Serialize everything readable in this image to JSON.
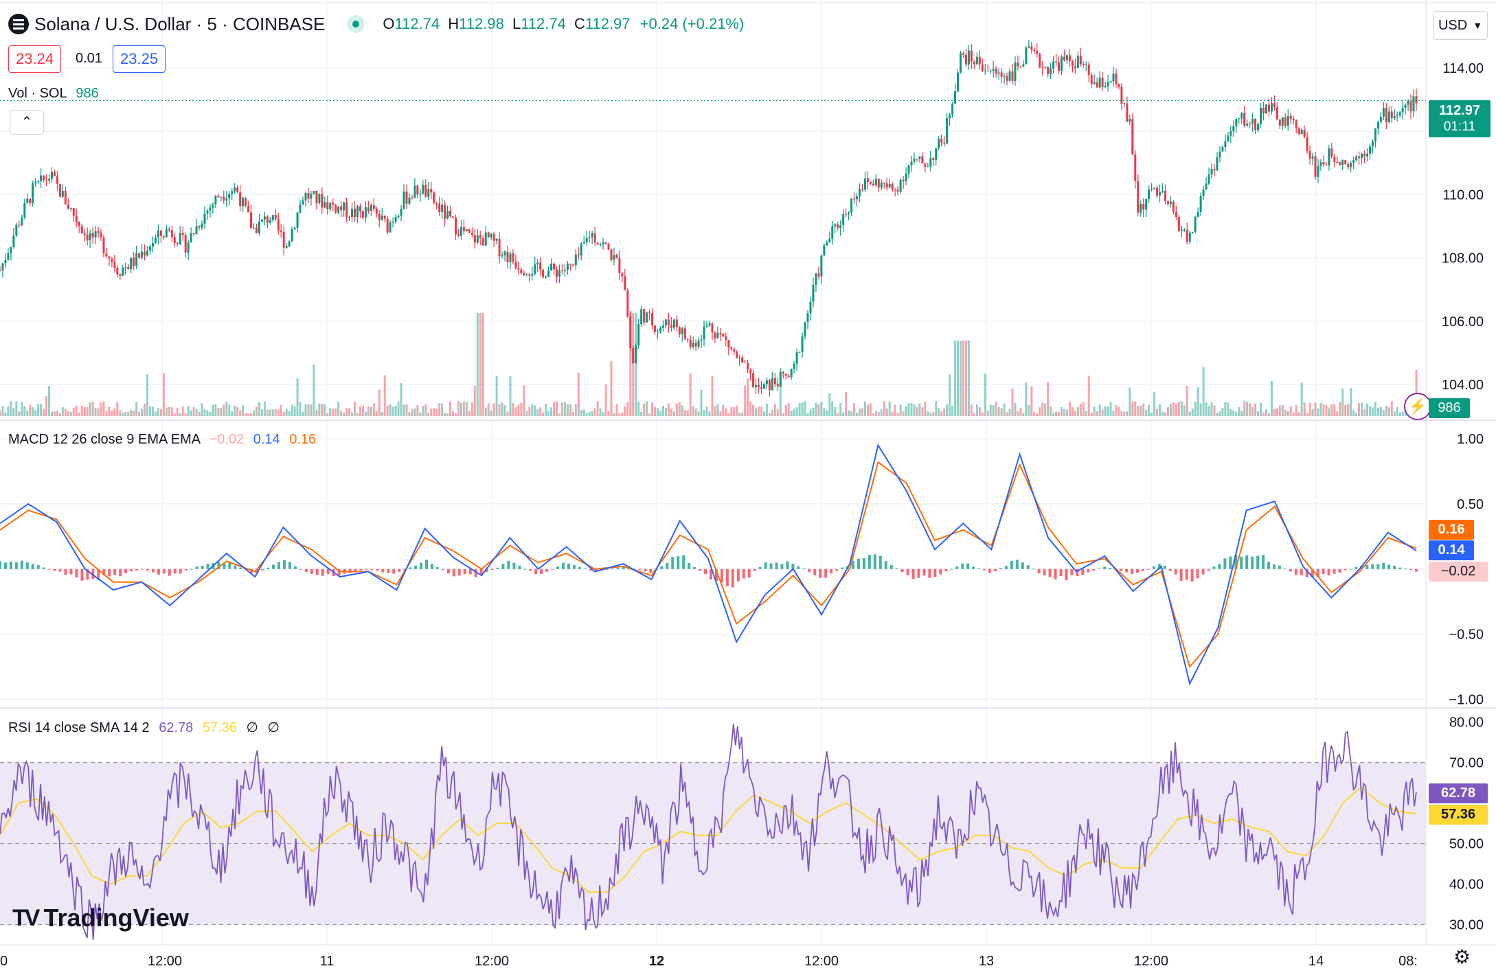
{
  "header": {
    "symbol_title": "Solana / U.S. Dollar · 5 · COINBASE",
    "ohlc": {
      "o_label": "O",
      "o": "112.74",
      "h_label": "H",
      "h": "112.98",
      "l_label": "L",
      "l": "112.74",
      "c_label": "C",
      "c": "112.97",
      "change": "+0.24 (+0.21%)"
    },
    "bid": "23.24",
    "spread": "0.01",
    "ask": "23.25",
    "currency": "USD"
  },
  "volume_legend": {
    "label": "Vol · SOL",
    "value": "986"
  },
  "macd_legend": {
    "label": "MACD 12 26 close 9 EMA EMA",
    "hist": "−0.02",
    "macd": "0.14",
    "signal": "0.16"
  },
  "rsi_legend": {
    "label": "RSI 14 close SMA 14 2",
    "rsi": "62.78",
    "sma": "57.36",
    "extra1": "∅",
    "extra2": "∅"
  },
  "price_scale": {
    "ticks": [
      "114.00",
      "112.00",
      "110.00",
      "108.00",
      "106.00",
      "104.00"
    ],
    "last_price": "112.97",
    "countdown": "01:11",
    "volume_last": "986"
  },
  "macd_scale": {
    "ticks": [
      "1.00",
      "0.50",
      "−0.50",
      "−1.00"
    ],
    "signal_tag": "0.16",
    "macd_tag": "0.14",
    "hist_tag": "−0.02"
  },
  "rsi_scale": {
    "ticks": [
      "80.00",
      "70.00",
      "50.00",
      "40.00",
      "30.00"
    ],
    "rsi_tag": "62.78",
    "sma_tag": "57.36"
  },
  "time_axis": {
    "labels": [
      "0",
      "12:00",
      "11",
      "12:00",
      "12",
      "12:00",
      "13",
      "12:00",
      "14",
      "08:"
    ]
  },
  "brand": {
    "name": "TradingView",
    "logo": "TV"
  },
  "colors": {
    "up": "#089981",
    "down": "#f23645",
    "macd": "#2962ff",
    "signal": "#ff6d00",
    "rsi": "#7e57c2",
    "rsi_sma": "#fdd835",
    "rsi_band": "#ede7f6",
    "accent_last": "#089981"
  },
  "chart_data": [
    {
      "type": "candlestick",
      "title": "Solana / U.S. Dollar · 5 · COINBASE",
      "ylim": [
        103,
        115.5
      ],
      "x_labels": [
        "0",
        "12:00",
        "11",
        "12:00",
        "12",
        "12:00",
        "13",
        "12:00",
        "14",
        "08:"
      ],
      "close_path": [
        [
          0,
          107.6
        ],
        [
          4,
          109
        ],
        [
          8,
          110.2
        ],
        [
          12,
          110.6
        ],
        [
          16,
          109.7
        ],
        [
          20,
          108.8
        ],
        [
          24,
          108.5
        ],
        [
          28,
          107.6
        ],
        [
          32,
          107.9
        ],
        [
          36,
          108.5
        ],
        [
          40,
          108.9
        ],
        [
          44,
          108.4
        ],
        [
          48,
          109.3
        ],
        [
          52,
          110
        ],
        [
          56,
          110.2
        ],
        [
          60,
          108.9
        ],
        [
          64,
          109.3
        ],
        [
          68,
          108.4
        ],
        [
          72,
          110
        ],
        [
          76,
          109.8
        ],
        [
          80,
          109.6
        ],
        [
          84,
          109.4
        ],
        [
          88,
          109.5
        ],
        [
          92,
          109
        ],
        [
          96,
          109.9
        ],
        [
          100,
          110.2
        ],
        [
          104,
          109.6
        ],
        [
          108,
          109
        ],
        [
          112,
          108.6
        ],
        [
          116,
          108.6
        ],
        [
          120,
          108.1
        ],
        [
          124,
          107.7
        ],
        [
          128,
          107.6
        ],
        [
          132,
          107.6
        ],
        [
          136,
          107.7
        ],
        [
          140,
          108.8
        ],
        [
          144,
          108.3
        ],
        [
          148,
          107.5
        ],
        [
          150,
          104.5
        ],
        [
          152,
          106.3
        ],
        [
          156,
          105.8
        ],
        [
          160,
          106
        ],
        [
          164,
          105.2
        ],
        [
          168,
          105.9
        ],
        [
          172,
          105.4
        ],
        [
          176,
          104.6
        ],
        [
          180,
          103.8
        ],
        [
          184,
          104.1
        ],
        [
          188,
          104.3
        ],
        [
          192,
          106.5
        ],
        [
          196,
          108.5
        ],
        [
          200,
          109.3
        ],
        [
          204,
          110.3
        ],
        [
          208,
          110.4
        ],
        [
          212,
          110.1
        ],
        [
          216,
          111
        ],
        [
          220,
          111
        ],
        [
          224,
          111.8
        ],
        [
          228,
          114.4
        ],
        [
          232,
          114.2
        ],
        [
          236,
          113.8
        ],
        [
          240,
          113.8
        ],
        [
          244,
          114.5
        ],
        [
          248,
          114
        ],
        [
          252,
          114.2
        ],
        [
          256,
          114.2
        ],
        [
          260,
          113.4
        ],
        [
          264,
          113.7
        ],
        [
          268,
          112.2
        ],
        [
          270,
          109.5
        ],
        [
          274,
          110.2
        ],
        [
          278,
          109.5
        ],
        [
          282,
          108.5
        ],
        [
          286,
          110.4
        ],
        [
          290,
          111.5
        ],
        [
          294,
          112.4
        ],
        [
          298,
          112.2
        ],
        [
          300,
          112.9
        ],
        [
          304,
          112.3
        ],
        [
          308,
          112.2
        ],
        [
          312,
          110.8
        ],
        [
          316,
          111.3
        ],
        [
          320,
          111
        ],
        [
          324,
          111.4
        ],
        [
          328,
          112.5
        ],
        [
          332,
          112.6
        ],
        [
          336,
          112.97
        ]
      ],
      "volume_note": "volume histogram beneath price, last value 986"
    },
    {
      "type": "line",
      "title": "MACD 12 26 close 9 EMA EMA",
      "ylim": [
        -1.05,
        1.1
      ],
      "series": [
        {
          "name": "MACD",
          "values": [
            0.35,
            0.5,
            0.36,
            0.0,
            -0.16,
            -0.1,
            -0.28,
            -0.08,
            0.12,
            -0.06,
            0.32,
            0.1,
            -0.06,
            -0.02,
            -0.16,
            0.31,
            0.09,
            -0.05,
            0.24,
            0.0,
            0.17,
            -0.02,
            0.04,
            -0.08,
            0.37,
            0.08,
            -0.56,
            -0.2,
            0.0,
            -0.35,
            0.04,
            0.95,
            0.6,
            0.15,
            0.35,
            0.15,
            0.88,
            0.24,
            -0.02,
            0.1,
            -0.17,
            0.02,
            -0.88,
            -0.45,
            0.45,
            0.52,
            0.02,
            -0.22,
            0.0,
            0.28,
            0.14
          ]
        },
        {
          "name": "Signal",
          "values": [
            0.3,
            0.45,
            0.38,
            0.08,
            -0.1,
            -0.1,
            -0.22,
            -0.1,
            0.06,
            -0.02,
            0.25,
            0.15,
            -0.02,
            -0.02,
            -0.12,
            0.24,
            0.14,
            0.0,
            0.18,
            0.05,
            0.12,
            0.0,
            0.02,
            -0.05,
            0.26,
            0.15,
            -0.42,
            -0.25,
            -0.05,
            -0.28,
            0.0,
            0.82,
            0.66,
            0.22,
            0.3,
            0.18,
            0.8,
            0.32,
            0.04,
            0.08,
            -0.12,
            -0.02,
            -0.75,
            -0.5,
            0.3,
            0.48,
            0.08,
            -0.18,
            -0.02,
            0.24,
            0.16
          ]
        },
        {
          "name": "Histogram",
          "values": [
            0.05,
            0.05,
            -0.02,
            -0.08,
            -0.06,
            0.0,
            -0.06,
            0.02,
            0.06,
            -0.04,
            0.07,
            -0.05,
            -0.04,
            0.0,
            -0.04,
            0.07,
            -0.05,
            -0.05,
            0.06,
            -0.05,
            0.05,
            -0.02,
            0.02,
            -0.03,
            0.11,
            -0.07,
            -0.14,
            0.05,
            0.05,
            -0.07,
            0.04,
            0.13,
            -0.06,
            -0.07,
            0.05,
            -0.03,
            0.08,
            -0.08,
            -0.06,
            0.02,
            -0.05,
            0.04,
            -0.13,
            0.05,
            0.15,
            0.04,
            -0.06,
            -0.04,
            0.02,
            0.04,
            -0.02
          ]
        }
      ]
    },
    {
      "type": "line",
      "title": "RSI 14 close SMA 14 2",
      "ylim": [
        25,
        83
      ],
      "band": [
        30,
        70
      ],
      "midline": 50,
      "series": [
        {
          "name": "RSI",
          "values": [
            50,
            68,
            62,
            55,
            40,
            30,
            42,
            48,
            36,
            58,
            66,
            55,
            44,
            62,
            70,
            52,
            48,
            38,
            66,
            60,
            44,
            55,
            48,
            34,
            70,
            58,
            45,
            68,
            52,
            40,
            33,
            42,
            30,
            38,
            52,
            60,
            45,
            64,
            47,
            52,
            78,
            62,
            55,
            58,
            48,
            70,
            62,
            48,
            55,
            40,
            38,
            58,
            48,
            62,
            52,
            42,
            45,
            32,
            40,
            54,
            46,
            36,
            44,
            62,
            70,
            56,
            48,
            62,
            47,
            50,
            36,
            44,
            70,
            76,
            64,
            50,
            57,
            62.78
          ]
        },
        {
          "name": "RSI-based MA",
          "values": [
            52,
            60,
            61,
            57,
            50,
            42,
            40,
            42,
            42,
            48,
            55,
            58,
            54,
            55,
            58,
            58,
            53,
            48,
            52,
            55,
            52,
            52,
            50,
            46,
            52,
            56,
            52,
            55,
            55,
            50,
            44,
            42,
            38,
            38,
            42,
            48,
            50,
            53,
            52,
            52,
            58,
            62,
            60,
            58,
            55,
            58,
            60,
            57,
            54,
            50,
            46,
            48,
            49,
            52,
            52,
            49,
            48,
            44,
            42,
            45,
            46,
            44,
            44,
            50,
            56,
            57,
            55,
            56,
            54,
            53,
            48,
            47,
            52,
            60,
            64,
            60,
            58,
            57.36
          ]
        }
      ]
    }
  ]
}
